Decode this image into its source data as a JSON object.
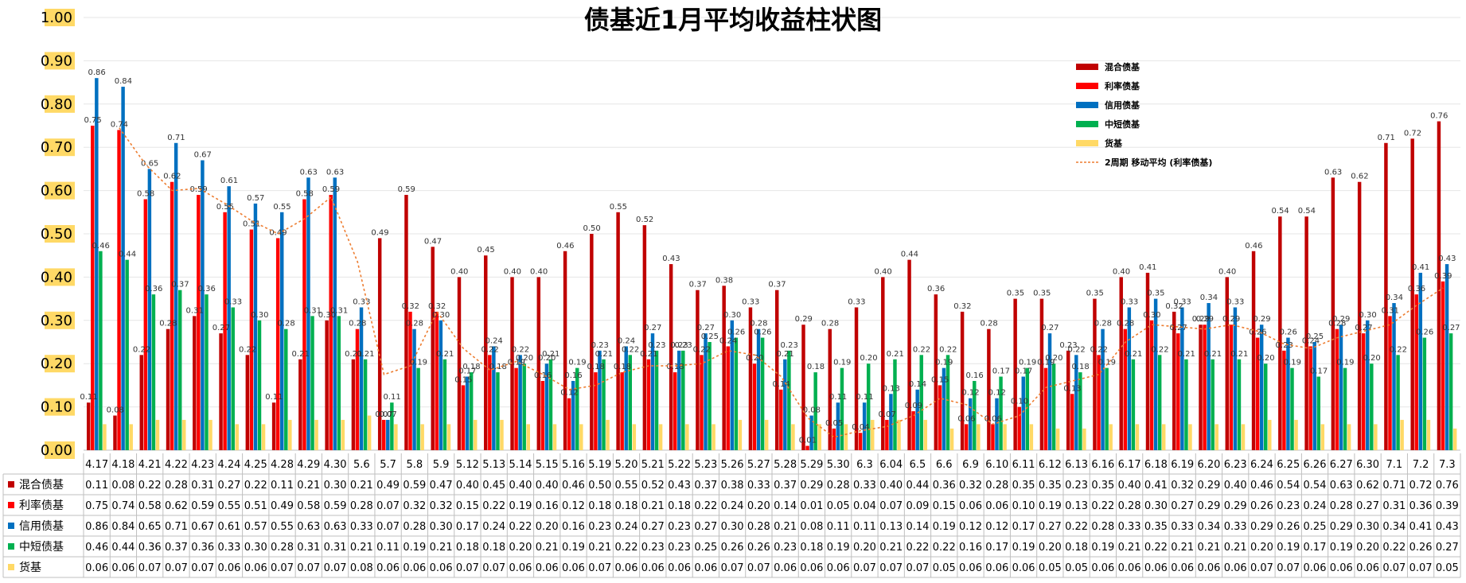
{
  "chart_data": {
    "type": "bar",
    "title": "债基近1月平均收益柱状图",
    "ylim": [
      0,
      1.0
    ],
    "yticks": [
      "0.00",
      "0.10",
      "0.20",
      "0.30",
      "0.40",
      "0.50",
      "0.60",
      "0.70",
      "0.80",
      "0.90",
      "1.00"
    ],
    "grid": true,
    "legend_position": "top-right",
    "categories": [
      "4.17",
      "4.18",
      "4.21",
      "4.22",
      "4.23",
      "4.24",
      "4.25",
      "4.28",
      "4.29",
      "4.30",
      "5.6",
      "5.7",
      "5.8",
      "5.9",
      "5.12",
      "5.13",
      "5.14",
      "5.15",
      "5.16",
      "5.19",
      "5.20",
      "5.21",
      "5.22",
      "5.23",
      "5.26",
      "5.27",
      "5.28",
      "5.29",
      "5.30",
      "6.3",
      "6.04",
      "6.5",
      "6.6",
      "6.9",
      "6.10",
      "6.11",
      "6.12",
      "6.13",
      "6.16",
      "6.17",
      "6.18",
      "6.19",
      "6.20",
      "6.23",
      "6.24",
      "6.25",
      "6.26",
      "6.27",
      "6.30",
      "7.1",
      "7.2",
      "7.3"
    ],
    "series": [
      {
        "name": "混合债基",
        "color": "#C00000",
        "values": [
          0.11,
          0.08,
          0.22,
          0.28,
          0.31,
          0.27,
          0.22,
          0.11,
          0.21,
          0.3,
          0.21,
          0.49,
          0.59,
          0.47,
          0.4,
          0.45,
          0.4,
          0.4,
          0.46,
          0.5,
          0.55,
          0.52,
          0.43,
          0.37,
          0.38,
          0.33,
          0.37,
          0.29,
          0.28,
          0.33,
          0.4,
          0.44,
          0.36,
          0.32,
          0.28,
          0.35,
          0.35,
          0.23,
          0.35,
          0.4,
          0.41,
          0.32,
          0.29,
          0.4,
          0.46,
          0.54,
          0.54,
          0.63,
          0.62,
          0.71,
          0.72,
          0.76
        ]
      },
      {
        "name": "利率债基",
        "color": "#FF0000",
        "values": [
          0.75,
          0.74,
          0.58,
          0.62,
          0.59,
          0.55,
          0.51,
          0.49,
          0.58,
          0.59,
          0.28,
          0.07,
          0.32,
          0.32,
          0.15,
          0.22,
          0.19,
          0.16,
          0.12,
          0.18,
          0.18,
          0.21,
          0.18,
          0.22,
          0.24,
          0.2,
          0.14,
          0.01,
          0.05,
          0.04,
          0.07,
          0.09,
          0.15,
          0.06,
          0.06,
          0.1,
          0.19,
          0.13,
          0.22,
          0.28,
          0.3,
          0.27,
          0.29,
          0.29,
          0.26,
          0.23,
          0.24,
          0.28,
          0.27,
          0.31,
          0.36,
          0.39
        ]
      },
      {
        "name": "信用债基",
        "color": "#0070C0",
        "values": [
          0.86,
          0.84,
          0.65,
          0.71,
          0.67,
          0.61,
          0.57,
          0.55,
          0.63,
          0.63,
          0.33,
          0.07,
          0.28,
          0.3,
          0.17,
          0.24,
          0.22,
          0.2,
          0.16,
          0.23,
          0.24,
          0.27,
          0.23,
          0.27,
          0.3,
          0.28,
          0.21,
          0.08,
          0.11,
          0.11,
          0.13,
          0.14,
          0.19,
          0.12,
          0.12,
          0.17,
          0.27,
          0.22,
          0.28,
          0.33,
          0.35,
          0.33,
          0.34,
          0.33,
          0.29,
          0.26,
          0.25,
          0.29,
          0.3,
          0.34,
          0.41,
          0.43
        ]
      },
      {
        "name": "中短债基",
        "color": "#00B050",
        "values": [
          0.46,
          0.44,
          0.36,
          0.37,
          0.36,
          0.33,
          0.3,
          0.28,
          0.31,
          0.31,
          0.21,
          0.11,
          0.19,
          0.21,
          0.18,
          0.18,
          0.2,
          0.21,
          0.19,
          0.21,
          0.22,
          0.23,
          0.23,
          0.25,
          0.26,
          0.26,
          0.23,
          0.18,
          0.19,
          0.2,
          0.21,
          0.22,
          0.22,
          0.16,
          0.17,
          0.19,
          0.2,
          0.18,
          0.19,
          0.21,
          0.22,
          0.21,
          0.21,
          0.21,
          0.2,
          0.19,
          0.17,
          0.19,
          0.2,
          0.22,
          0.26,
          0.27
        ]
      },
      {
        "name": "货基",
        "color": "#FFD966",
        "values": [
          0.06,
          0.06,
          0.07,
          0.07,
          0.07,
          0.06,
          0.06,
          0.07,
          0.07,
          0.07,
          0.08,
          0.06,
          0.06,
          0.06,
          0.07,
          0.07,
          0.06,
          0.06,
          0.06,
          0.07,
          0.06,
          0.06,
          0.06,
          0.06,
          0.07,
          0.07,
          0.06,
          0.06,
          0.06,
          0.07,
          0.07,
          0.07,
          0.05,
          0.06,
          0.06,
          0.06,
          0.05,
          0.05,
          0.06,
          0.06,
          0.06,
          0.06,
          0.06,
          0.06,
          0.07,
          0.07,
          0.06,
          0.06,
          0.06,
          0.07,
          0.07,
          0.05
        ]
      }
    ],
    "trendline": {
      "name": "2周期 移动平均 (利率债基)",
      "color": "#ED7D31",
      "series_index": 1,
      "period": 2
    }
  }
}
